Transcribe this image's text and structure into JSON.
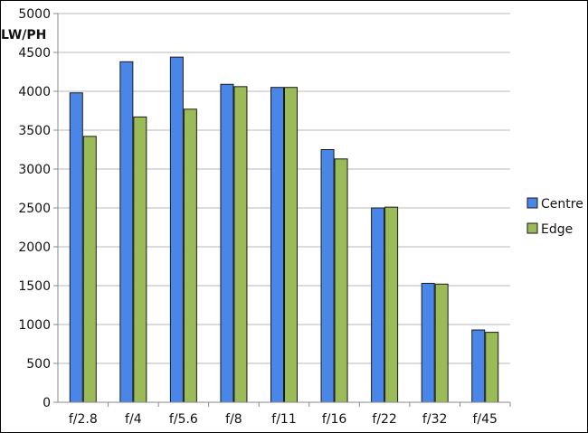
{
  "chart_data": {
    "type": "bar",
    "ylabel": "LW/PH",
    "xlabel": "",
    "ylim": [
      0,
      5000
    ],
    "ytick_step": 500,
    "categories": [
      "f/2.8",
      "f/4",
      "f/5.6",
      "f/8",
      "f/11",
      "f/16",
      "f/22",
      "f/32",
      "f/45"
    ],
    "series": [
      {
        "name": "Centre",
        "color": "#4a86e8",
        "values": [
          3980,
          4380,
          4440,
          4090,
          4050,
          3250,
          2500,
          1530,
          930
        ]
      },
      {
        "name": "Edge",
        "color": "#9bbb59",
        "values": [
          3420,
          3670,
          3770,
          4060,
          4050,
          3130,
          2510,
          1520,
          900
        ]
      }
    ],
    "grid": true,
    "legend_position": "right"
  }
}
